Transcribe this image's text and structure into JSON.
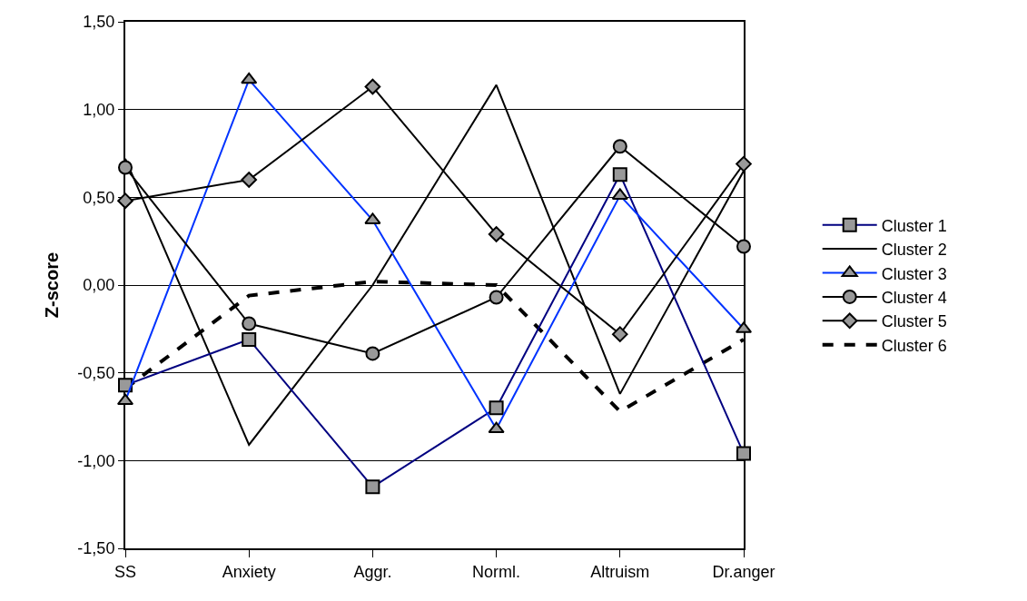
{
  "chart_data": {
    "type": "line",
    "ylabel": "Z-score",
    "categories": [
      "SS",
      "Anxiety",
      "Aggr.",
      "Norml.",
      "Altruism",
      "Dr.anger"
    ],
    "series": [
      {
        "name": "Cluster 1",
        "color": "#000080",
        "marker": "square",
        "line_style": "solid",
        "values": [
          -0.57,
          -0.31,
          -1.15,
          -0.7,
          0.63,
          -0.96
        ]
      },
      {
        "name": "Cluster 2",
        "color": "#000000",
        "marker": "none",
        "line_style": "solid",
        "values": [
          0.72,
          -0.91,
          0.0,
          1.14,
          -0.62,
          0.65
        ]
      },
      {
        "name": "Cluster 3",
        "color": "#0033ff",
        "marker": "triangle",
        "line_style": "solid",
        "values": [
          -0.66,
          1.17,
          0.37,
          -0.82,
          0.51,
          -0.25
        ]
      },
      {
        "name": "Cluster 4",
        "color": "#000000",
        "marker": "circle",
        "line_style": "solid",
        "values": [
          0.67,
          -0.22,
          -0.39,
          -0.07,
          0.79,
          0.22
        ]
      },
      {
        "name": "Cluster 5",
        "color": "#000000",
        "marker": "diamond",
        "line_style": "solid",
        "values": [
          0.48,
          0.6,
          1.13,
          0.29,
          -0.28,
          0.69
        ]
      },
      {
        "name": "Cluster 6",
        "color": "#000000",
        "marker": "none",
        "line_style": "dashed",
        "values": [
          -0.59,
          -0.06,
          0.02,
          0.0,
          -0.72,
          -0.31
        ]
      }
    ],
    "ylim": [
      -1.5,
      1.5
    ],
    "yticks": [
      {
        "value": -1.5,
        "label": "-1,50"
      },
      {
        "value": -1.0,
        "label": "-1,00"
      },
      {
        "value": -0.5,
        "label": "-0,50"
      },
      {
        "value": 0.0,
        "label": "0,00"
      },
      {
        "value": 0.5,
        "label": "0,50"
      },
      {
        "value": 1.0,
        "label": "1,00"
      },
      {
        "value": 1.5,
        "label": "1,50"
      }
    ],
    "grid": "y",
    "legend": "right"
  }
}
